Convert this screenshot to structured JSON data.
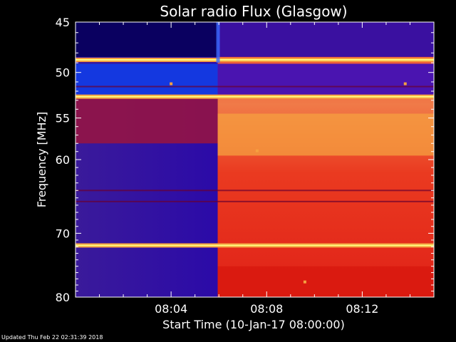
{
  "chart_data": {
    "type": "heatmap",
    "title": "Solar radio Flux (Glasgow)",
    "xlabel": "Start Time (10-Jan-17 08:00:00)",
    "ylabel": "Frequency [MHz]",
    "x_ticks": [
      "08:04",
      "08:08",
      "08:12"
    ],
    "x_tick_values_min": [
      4,
      8,
      12
    ],
    "xlim_min": [
      0,
      15
    ],
    "y_ticks": [
      45,
      50,
      55,
      60,
      70,
      80
    ],
    "ylim": [
      45,
      80
    ],
    "y_scale": "log",
    "onset_time_min": 5.95,
    "bright_bands_mhz": [
      48.7,
      52.6,
      71.8
    ],
    "dark_line_mhz": [
      51.5,
      64.0,
      65.5
    ],
    "colors": {
      "low": "#2a0a9e",
      "mid": "#d21010",
      "high": "#f5a040",
      "peak": "#ffff80"
    }
  },
  "footer": "Updated Thu Feb 22 02:31:39 2018"
}
